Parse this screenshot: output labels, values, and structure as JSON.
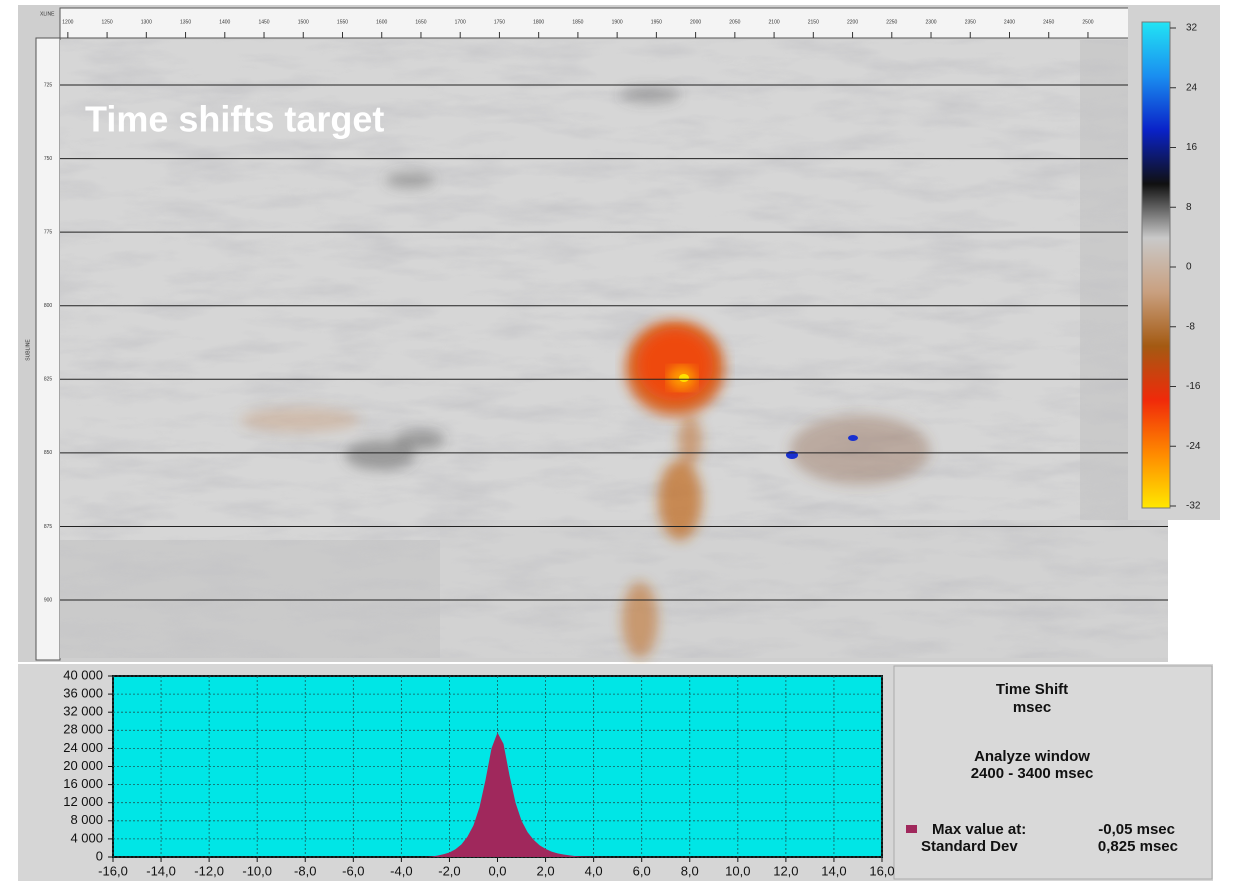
{
  "seismic": {
    "title": "Time shifts target",
    "xlabel": "XLINE",
    "ylabel": "SUBLINE",
    "xlim": [
      1190,
      2602
    ],
    "xticks": [
      1200,
      1250,
      1300,
      1350,
      1400,
      1450,
      1500,
      1550,
      1600,
      1650,
      1700,
      1750,
      1800,
      1850,
      1900,
      1950,
      2000,
      2050,
      2100,
      2150,
      2200,
      2250,
      2300,
      2350,
      2400,
      2450,
      2500
    ],
    "ylim": [
      709.7,
      919.7
    ],
    "yticks": [
      725,
      750,
      775,
      800,
      825,
      850,
      875,
      900
    ],
    "colorbar": {
      "lim": [
        32,
        -32
      ],
      "ticks": [
        32,
        24,
        16,
        8,
        0,
        -8,
        -16,
        -24,
        -32
      ],
      "colors": [
        "#22e4f4",
        "#1a8ef0",
        "#0a22c8",
        "#101010",
        "#c9c9c9",
        "#c9a080",
        "#a45a12",
        "#f02a0a",
        "#ff8a00",
        "#ffe800"
      ]
    }
  },
  "chart_data": {
    "type": "area",
    "color": "#a0285c",
    "background": "#00e6e6",
    "grid": true,
    "x": [
      -3,
      -2.75,
      -2.5,
      -2.25,
      -2,
      -1.75,
      -1.5,
      -1.25,
      -1,
      -0.75,
      -0.5,
      -0.25,
      0,
      0.25,
      0.5,
      0.75,
      1,
      1.25,
      1.5,
      1.75,
      2,
      2.25,
      2.5,
      2.75,
      3,
      3.25,
      3.5,
      4,
      4.5
    ],
    "values": [
      0,
      100,
      300,
      600,
      1000,
      1700,
      2800,
      4500,
      7000,
      11000,
      17000,
      24000,
      27500,
      25000,
      18000,
      12000,
      8000,
      5500,
      3800,
      2600,
      1800,
      1200,
      800,
      550,
      350,
      200,
      120,
      50,
      0
    ],
    "xlim": [
      -16,
      16
    ],
    "xticks": [
      {
        "value": -16,
        "label": "-16,0"
      },
      {
        "value": -14,
        "label": "-14,0"
      },
      {
        "value": -12,
        "label": "-12,0"
      },
      {
        "value": -10,
        "label": "-10,0"
      },
      {
        "value": -8,
        "label": "-8,0"
      },
      {
        "value": -6,
        "label": "-6,0"
      },
      {
        "value": -4,
        "label": "-4,0"
      },
      {
        "value": -2,
        "label": "-2,0"
      },
      {
        "value": 0,
        "label": "0,0"
      },
      {
        "value": 2,
        "label": "2,0"
      },
      {
        "value": 4,
        "label": "4,0"
      },
      {
        "value": 6,
        "label": "6,0"
      },
      {
        "value": 8,
        "label": "8,0"
      },
      {
        "value": 10,
        "label": "10,0"
      },
      {
        "value": 12,
        "label": "12,0"
      },
      {
        "value": 14,
        "label": "14,0"
      },
      {
        "value": 16,
        "label": "16,0"
      }
    ],
    "ylim": [
      0,
      40000
    ],
    "yticks": [
      0,
      {
        "value": 4000,
        "label": "4 000"
      },
      {
        "value": 8000,
        "label": "8 000"
      },
      {
        "value": 12000,
        "label": "12 000"
      },
      {
        "value": 16000,
        "label": "16 000"
      },
      {
        "value": 20000,
        "label": "20 000"
      },
      {
        "value": 24000,
        "label": "24 000"
      },
      {
        "value": 28000,
        "label": "28 000"
      },
      {
        "value": 32000,
        "label": "32 000"
      },
      {
        "value": 36000,
        "label": "36 000"
      },
      {
        "value": 40000,
        "label": "40 000"
      }
    ],
    "annotations": {
      "axis_title": "Time Shift",
      "axis_unit": "msec",
      "window_title": "Analyze window",
      "window_range": "2400 - 3400 msec",
      "max_label": "Max value at:",
      "max_value": "-0,05 msec",
      "std_label": "Standard Dev",
      "std_value": "0,825 msec"
    }
  }
}
